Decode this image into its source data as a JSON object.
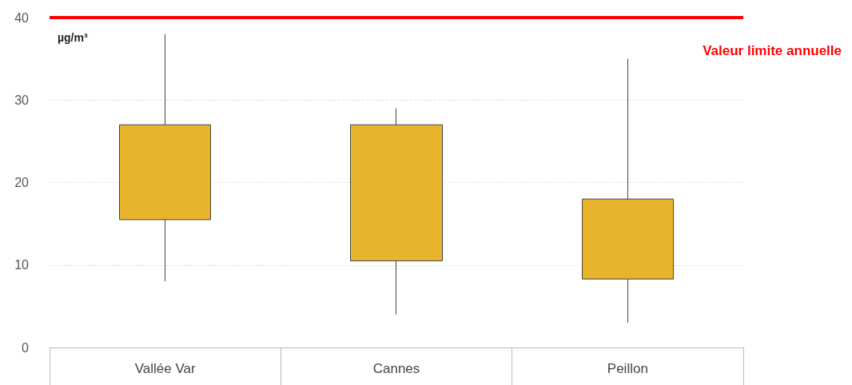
{
  "chart_data": {
    "type": "candlestick",
    "ylabel": "µg/m³",
    "categories": [
      "Vallée Var",
      "Cannes",
      "Peillon"
    ],
    "ohlc": [
      [
        15.5,
        38,
        8,
        27
      ],
      [
        10.5,
        29,
        4,
        27
      ],
      [
        8.3,
        35,
        3,
        18
      ]
    ],
    "color": "#e8b42c",
    "ylim": [
      0,
      40
    ],
    "yticks": [
      0,
      10,
      20,
      30,
      40
    ],
    "grid": "y",
    "ref_lines": [
      {
        "axis": "y",
        "value": 40,
        "label": "Valeur limite annuelle",
        "color": "#ff0000"
      }
    ]
  }
}
